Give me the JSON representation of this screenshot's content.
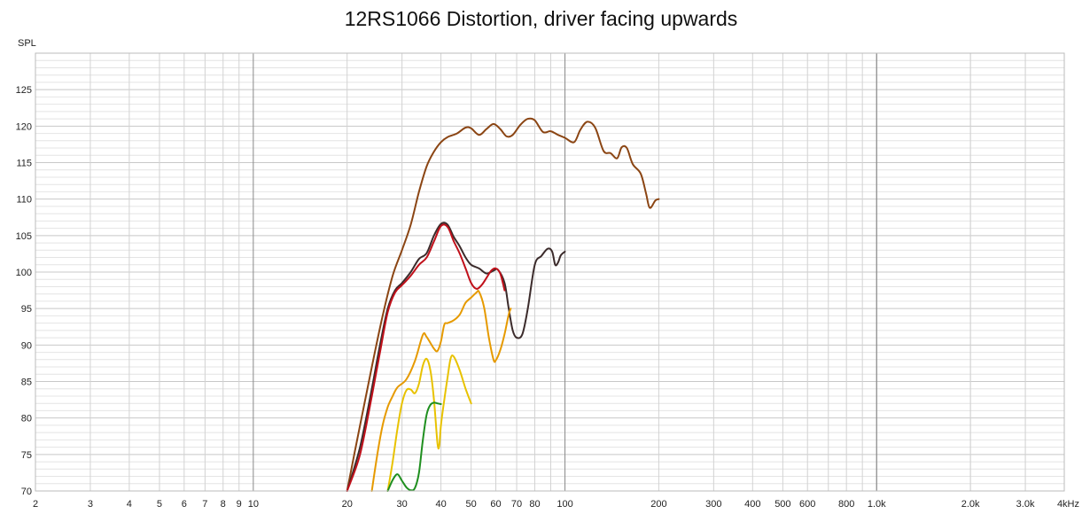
{
  "chart_data": {
    "type": "line",
    "title": "12RS1066 Distortion, driver facing upwards",
    "ylabel": "SPL",
    "xlabel": "",
    "xunit_label": "4kHz",
    "xscale": "log",
    "xlim": [
      2,
      4000
    ],
    "ylim": [
      70,
      130
    ],
    "grid": true,
    "y_tick_labels": [
      "70",
      "75",
      "80",
      "85",
      "90",
      "95",
      "100",
      "105",
      "110",
      "115",
      "120",
      "125"
    ],
    "y_tick_values": [
      70,
      75,
      80,
      85,
      90,
      95,
      100,
      105,
      110,
      115,
      120,
      125
    ],
    "x_tick_labels": [
      "2",
      "3",
      "4",
      "5",
      "6",
      "7",
      "8",
      "9",
      "10",
      "20",
      "30",
      "40",
      "50",
      "60",
      "70",
      "80",
      "100",
      "200",
      "300",
      "400",
      "500",
      "600",
      "800",
      "1.0k",
      "2.0k",
      "3.0k"
    ],
    "x_tick_values": [
      2,
      3,
      4,
      5,
      6,
      7,
      8,
      9,
      10,
      20,
      30,
      40,
      50,
      60,
      70,
      80,
      100,
      200,
      300,
      400,
      500,
      600,
      800,
      1000,
      2000,
      3000
    ],
    "series": [
      {
        "color": "#8B4513",
        "points": [
          [
            20,
            70
          ],
          [
            22,
            79
          ],
          [
            24,
            87
          ],
          [
            26,
            94
          ],
          [
            28,
            99.5
          ],
          [
            30,
            103
          ],
          [
            32,
            106.5
          ],
          [
            34,
            111
          ],
          [
            36,
            114.5
          ],
          [
            38,
            116.5
          ],
          [
            40,
            117.8
          ],
          [
            42,
            118.5
          ],
          [
            45,
            119
          ],
          [
            48,
            119.8
          ],
          [
            50,
            119.7
          ],
          [
            53,
            118.8
          ],
          [
            56,
            119.6
          ],
          [
            59,
            120.3
          ],
          [
            62,
            119.6
          ],
          [
            65,
            118.6
          ],
          [
            68,
            118.8
          ],
          [
            72,
            120.2
          ],
          [
            76,
            121
          ],
          [
            80,
            120.8
          ],
          [
            85,
            119.2
          ],
          [
            90,
            119.3
          ],
          [
            95,
            118.8
          ],
          [
            100,
            118.4
          ],
          [
            107,
            117.8
          ],
          [
            112,
            119.5
          ],
          [
            118,
            120.6
          ],
          [
            125,
            119.8
          ],
          [
            133,
            116.6
          ],
          [
            140,
            116.3
          ],
          [
            147,
            115.6
          ],
          [
            152,
            117.1
          ],
          [
            158,
            117
          ],
          [
            165,
            114.8
          ],
          [
            175,
            113.5
          ],
          [
            182,
            110.8
          ],
          [
            187,
            108.8
          ],
          [
            195,
            109.8
          ],
          [
            200,
            110
          ]
        ]
      },
      {
        "color": "#3b2b2b",
        "points": [
          [
            20,
            70
          ],
          [
            22,
            76
          ],
          [
            24,
            84
          ],
          [
            25.5,
            90
          ],
          [
            27,
            95
          ],
          [
            28.5,
            97.5
          ],
          [
            30,
            98.5
          ],
          [
            32,
            100
          ],
          [
            34,
            101.8
          ],
          [
            36,
            102.6
          ],
          [
            38,
            105
          ],
          [
            40,
            106.6
          ],
          [
            42,
            106.5
          ],
          [
            44,
            104.8
          ],
          [
            46,
            103.5
          ],
          [
            48,
            102
          ],
          [
            50,
            101
          ],
          [
            53,
            100.5
          ],
          [
            56,
            99.8
          ],
          [
            59,
            100.2
          ],
          [
            61,
            100.3
          ],
          [
            64,
            98.5
          ],
          [
            66,
            95
          ],
          [
            68,
            92
          ],
          [
            70,
            91
          ],
          [
            73,
            91.5
          ],
          [
            76,
            95
          ],
          [
            80,
            101
          ],
          [
            84,
            102.2
          ],
          [
            88,
            103.2
          ],
          [
            91,
            102.8
          ],
          [
            93,
            101
          ],
          [
            95,
            101.3
          ],
          [
            97,
            102.3
          ],
          [
            100,
            102.8
          ]
        ]
      },
      {
        "color": "#c0101a",
        "points": [
          [
            20,
            70
          ],
          [
            22,
            75
          ],
          [
            24,
            83
          ],
          [
            25.5,
            89
          ],
          [
            27,
            94.5
          ],
          [
            28.5,
            97.2
          ],
          [
            30,
            98.2
          ],
          [
            32,
            99.5
          ],
          [
            34,
            101
          ],
          [
            36,
            102
          ],
          [
            38,
            104.2
          ],
          [
            40,
            106.3
          ],
          [
            42,
            106.2
          ],
          [
            44,
            104.2
          ],
          [
            46,
            102.5
          ],
          [
            48,
            100.5
          ],
          [
            50,
            98.5
          ],
          [
            52,
            97.7
          ],
          [
            54,
            98.2
          ],
          [
            56,
            99.2
          ],
          [
            58,
            100.2
          ],
          [
            60,
            100.5
          ],
          [
            62,
            99.8
          ],
          [
            64,
            97.5
          ]
        ]
      },
      {
        "color": "#E69A00",
        "points": [
          [
            24,
            70
          ],
          [
            25,
            75
          ],
          [
            26,
            79
          ],
          [
            27,
            81.5
          ],
          [
            28,
            83
          ],
          [
            29,
            84.2
          ],
          [
            31,
            85.3
          ],
          [
            33,
            87.8
          ],
          [
            35,
            91.4
          ],
          [
            36,
            91.1
          ],
          [
            38,
            89.5
          ],
          [
            39,
            89.2
          ],
          [
            40,
            90.5
          ],
          [
            41,
            92.8
          ],
          [
            42,
            93
          ],
          [
            44,
            93.4
          ],
          [
            46,
            94.2
          ],
          [
            48,
            95.8
          ],
          [
            50,
            96.5
          ],
          [
            52,
            97.2
          ],
          [
            53,
            97.3
          ],
          [
            55,
            95.2
          ],
          [
            57,
            91
          ],
          [
            59,
            88
          ],
          [
            60,
            87.9
          ],
          [
            62,
            89.3
          ],
          [
            64,
            91.5
          ],
          [
            66,
            94.2
          ],
          [
            67,
            95
          ]
        ]
      },
      {
        "color": "#E8C200",
        "points": [
          [
            27,
            70
          ],
          [
            28,
            74
          ],
          [
            29,
            78.5
          ],
          [
            30,
            82
          ],
          [
            31,
            83.8
          ],
          [
            32,
            83.9
          ],
          [
            33,
            83.4
          ],
          [
            34,
            84.7
          ],
          [
            35,
            87.2
          ],
          [
            36,
            88.1
          ],
          [
            37,
            86.5
          ],
          [
            38,
            82.5
          ],
          [
            39,
            76.5
          ],
          [
            39.5,
            76.2
          ],
          [
            40,
            79
          ],
          [
            41,
            82.5
          ],
          [
            42,
            85.5
          ],
          [
            43,
            88.2
          ],
          [
            44,
            88.4
          ],
          [
            46,
            86.5
          ],
          [
            48,
            84
          ],
          [
            50,
            82
          ]
        ]
      },
      {
        "color": "#1f8f1f",
        "points": [
          [
            27,
            70
          ],
          [
            28,
            71.5
          ],
          [
            29,
            72.3
          ],
          [
            30,
            71.4
          ],
          [
            31,
            70.5
          ],
          [
            32,
            70.1
          ],
          [
            33,
            70.4
          ],
          [
            34,
            72.5
          ],
          [
            35,
            77
          ],
          [
            36,
            80.5
          ],
          [
            37,
            81.8
          ],
          [
            38,
            82.1
          ],
          [
            39,
            82
          ],
          [
            40,
            81.9
          ]
        ]
      }
    ]
  }
}
